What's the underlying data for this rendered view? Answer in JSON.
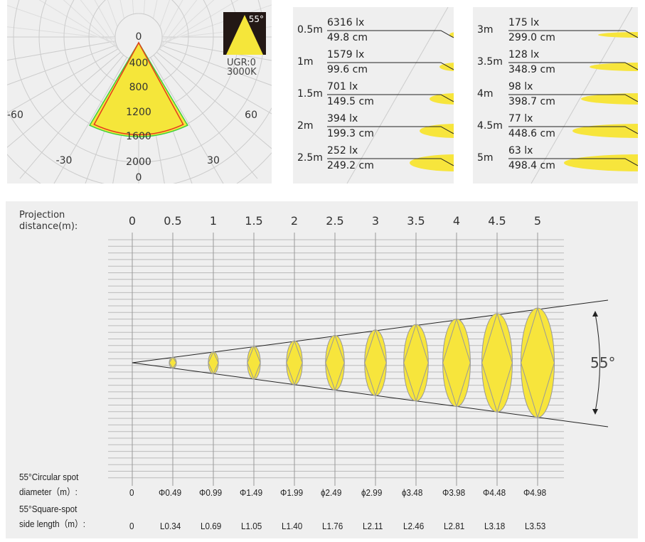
{
  "polar": {
    "ring_labels": [
      "0",
      "400",
      "800",
      "1200",
      "1600",
      "2000"
    ],
    "angle_labels": {
      "left60": "-60",
      "right60": "60",
      "left30": "-30",
      "right30": "30",
      "bottom": "0"
    },
    "badge": {
      "angle": "55°",
      "ugr": "UGR:0",
      "cct": "3000K"
    },
    "colors": {
      "fill": "#f5e63a",
      "c0": "#e53a1e",
      "c90": "#3ed13a"
    }
  },
  "illuminance_left": [
    {
      "d": "0.5m",
      "lx": "6316 lx",
      "cm": "49.8 cm"
    },
    {
      "d": "1m",
      "lx": "1579 lx",
      "cm": "99.6 cm"
    },
    {
      "d": "1.5m",
      "lx": "701 lx",
      "cm": "149.5 cm"
    },
    {
      "d": "2m",
      "lx": "394 lx",
      "cm": "199.3 cm"
    },
    {
      "d": "2.5m",
      "lx": "252 lx",
      "cm": "249.2 cm"
    }
  ],
  "illuminance_right": [
    {
      "d": "3m",
      "lx": "175 lx",
      "cm": "299.0 cm"
    },
    {
      "d": "3.5m",
      "lx": "128 lx",
      "cm": "348.9 cm"
    },
    {
      "d": "4m",
      "lx": "98 lx",
      "cm": "398.7 cm"
    },
    {
      "d": "4.5m",
      "lx": "77 lx",
      "cm": "448.6 cm"
    },
    {
      "d": "5m",
      "lx": "63 lx",
      "cm": "498.4 cm"
    }
  ],
  "projection": {
    "label_line1": "Projection",
    "label_line2": "distance(m):",
    "distances": [
      "0",
      "0.5",
      "1",
      "1.5",
      "2",
      "2.5",
      "3",
      "3.5",
      "4",
      "4.5",
      "5"
    ],
    "beam_angle": "55°",
    "circ_label1": "55°Circular spot",
    "circ_label2": "diameter（m）:",
    "circ": [
      "0",
      "Φ0.49",
      "Φ0.99",
      "Φ1.49",
      "Φ1.99",
      "ϕ2.49",
      "ϕ2.99",
      "ϕ3.48",
      "Φ3.98",
      "Φ4.48",
      "Φ4.98"
    ],
    "sq_label1": "55°Square-spot",
    "sq_label2": "side length（m）:",
    "sq": [
      "0",
      "L0.34",
      "L0.69",
      "L1.05",
      "L1.40",
      "L1.76",
      "L2.11",
      "L2.46",
      "L2.81",
      "L3.18",
      "L3.53"
    ],
    "spot_color": "#f7e53c"
  }
}
